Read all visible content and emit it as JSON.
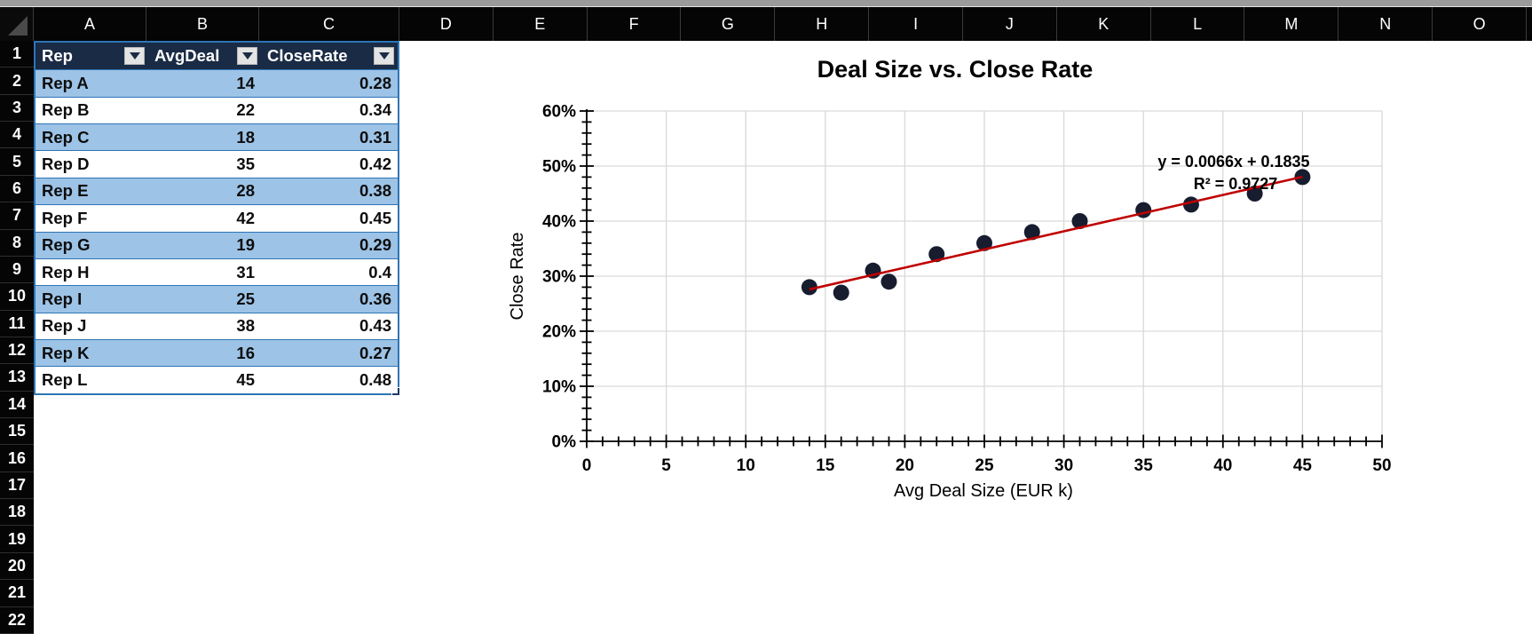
{
  "grid": {
    "column_letters": [
      "A",
      "B",
      "C",
      "D",
      "E",
      "F",
      "G",
      "H",
      "I",
      "J",
      "K",
      "L",
      "M",
      "N",
      "O"
    ],
    "row_numbers": [
      "1",
      "2",
      "3",
      "4",
      "5",
      "6",
      "7",
      "8",
      "9",
      "10",
      "11",
      "12",
      "13",
      "14",
      "15",
      "16",
      "17",
      "18",
      "19",
      "20",
      "21",
      "22"
    ]
  },
  "table": {
    "headers": [
      {
        "label": "Rep"
      },
      {
        "label": "AvgDeal"
      },
      {
        "label": "CloseRate"
      }
    ],
    "rows": [
      {
        "rep": "Rep A",
        "avg_deal": "14",
        "close_rate": "0.28"
      },
      {
        "rep": "Rep B",
        "avg_deal": "22",
        "close_rate": "0.34"
      },
      {
        "rep": "Rep C",
        "avg_deal": "18",
        "close_rate": "0.31"
      },
      {
        "rep": "Rep D",
        "avg_deal": "35",
        "close_rate": "0.42"
      },
      {
        "rep": "Rep E",
        "avg_deal": "28",
        "close_rate": "0.38"
      },
      {
        "rep": "Rep F",
        "avg_deal": "42",
        "close_rate": "0.45"
      },
      {
        "rep": "Rep G",
        "avg_deal": "19",
        "close_rate": "0.29"
      },
      {
        "rep": "Rep H",
        "avg_deal": "31",
        "close_rate": "0.4"
      },
      {
        "rep": "Rep I",
        "avg_deal": "25",
        "close_rate": "0.36"
      },
      {
        "rep": "Rep J",
        "avg_deal": "38",
        "close_rate": "0.43"
      },
      {
        "rep": "Rep K",
        "avg_deal": "16",
        "close_rate": "0.27"
      },
      {
        "rep": "Rep L",
        "avg_deal": "45",
        "close_rate": "0.48"
      }
    ]
  },
  "chart_data": {
    "type": "scatter",
    "title": "Deal Size vs. Close Rate",
    "xlabel": "Avg Deal Size (EUR k)",
    "ylabel": "Close Rate",
    "points": [
      [
        14,
        0.28
      ],
      [
        22,
        0.34
      ],
      [
        18,
        0.31
      ],
      [
        35,
        0.42
      ],
      [
        28,
        0.38
      ],
      [
        42,
        0.45
      ],
      [
        19,
        0.29
      ],
      [
        31,
        0.4
      ],
      [
        25,
        0.36
      ],
      [
        38,
        0.43
      ],
      [
        16,
        0.27
      ],
      [
        45,
        0.48
      ]
    ],
    "xlim": [
      0,
      50
    ],
    "ylim": [
      0,
      0.6
    ],
    "x_major_tick": 5,
    "x_minor_tick": 1,
    "y_major_tick": 0.1,
    "y_minor_tick": 0.02,
    "x_tick_labels": [
      "0",
      "5",
      "10",
      "15",
      "20",
      "25",
      "30",
      "35",
      "40",
      "45",
      "50"
    ],
    "y_tick_labels": [
      "0%",
      "10%",
      "20%",
      "30%",
      "40%",
      "50%",
      "60%"
    ],
    "grid": true,
    "legend": "none",
    "trendline": {
      "slope": 0.0066,
      "intercept": 0.1835,
      "x_start": 14,
      "x_end": 45,
      "equation": "y = 0.0066x + 0.1835",
      "r_squared": "R² = 0.9727"
    }
  },
  "colors": {
    "band_blue": "#9dc3e6",
    "table_border_blue": "#2e75b6",
    "header_navy": "#1a2b45",
    "fill_handle": "#1f3864",
    "marker": "#171d2f",
    "trendline": "#c00000",
    "gridline": "#d9d9d9",
    "axis": "#000000"
  }
}
